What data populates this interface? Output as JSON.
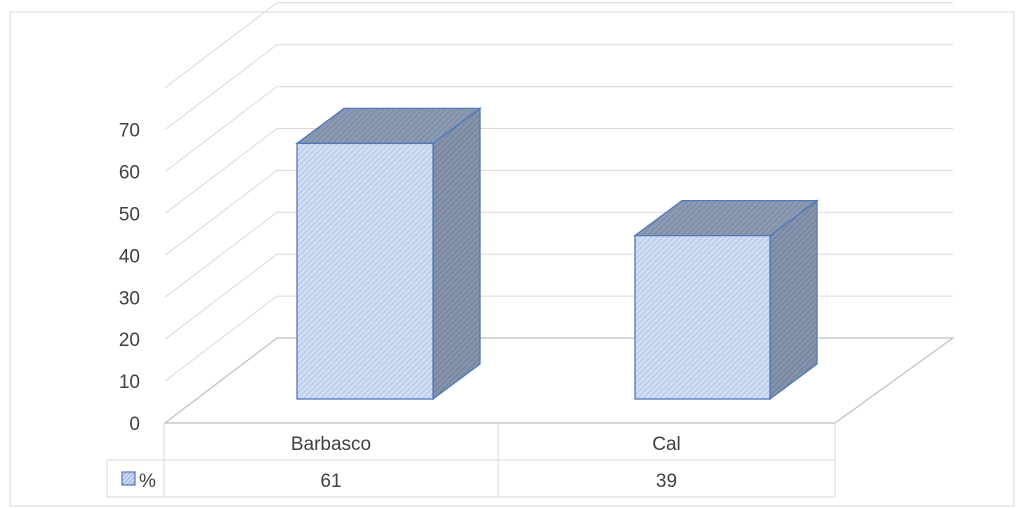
{
  "chart_data": {
    "type": "bar",
    "style": "3d-column",
    "categories": [
      "Barbasco",
      "Cal"
    ],
    "series": [
      {
        "name": "%",
        "values": [
          61,
          39
        ]
      }
    ],
    "ylim": [
      0,
      70
    ],
    "yticks": [
      0,
      10,
      20,
      30,
      40,
      50,
      60,
      70
    ],
    "grid": true,
    "legend": "data-table",
    "colors": {
      "bar_front": "#c9d9f1",
      "bar_side": "#7f8fa9",
      "bar_top": "#8797b0",
      "bar_edge": "#4f79b8",
      "grid": "#d9d9d9",
      "text": "#404040"
    }
  }
}
